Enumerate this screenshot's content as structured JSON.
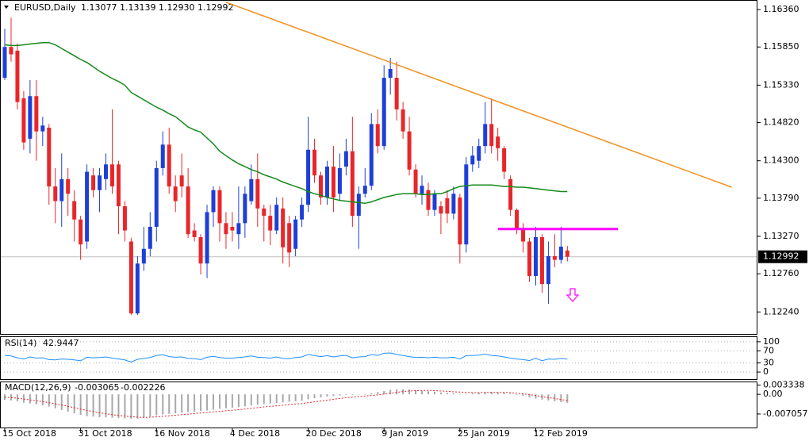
{
  "chart_data": [
    {
      "type": "candlestick",
      "title": "EURUSD,Daily",
      "subtitle": "1.13077 1.13139 1.12930 1.12992",
      "categories": [
        "15 Oct 2018",
        null,
        null,
        null,
        null,
        null,
        null,
        null,
        null,
        null,
        null,
        null,
        "31 Oct 2018",
        null,
        null,
        null,
        null,
        null,
        null,
        null,
        null,
        null,
        null,
        null,
        "16 Nov 2018",
        null,
        null,
        null,
        null,
        null,
        null,
        null,
        null,
        null,
        null,
        null,
        "4 Dec 2018",
        null,
        null,
        null,
        null,
        null,
        null,
        null,
        null,
        null,
        null,
        null,
        "20 Dec 2018",
        null,
        null,
        null,
        null,
        null,
        null,
        null,
        null,
        null,
        null,
        null,
        "9 Jan 2019",
        null,
        null,
        null,
        null,
        null,
        null,
        null,
        null,
        null,
        null,
        null,
        "25 Jan 2019",
        null,
        null,
        null,
        null,
        null,
        null,
        null,
        null,
        null,
        null,
        null,
        "12 Feb 2019",
        null,
        null,
        null,
        null,
        null
      ],
      "open": [
        1.1543,
        1.1585,
        1.158,
        1.1515,
        1.146,
        1.1518,
        1.147,
        1.1475,
        1.1395,
        1.1375,
        1.1405,
        1.1375,
        1.135,
        1.132,
        1.141,
        1.139,
        1.1405,
        1.1425,
        1.1425,
        1.1368,
        1.132,
        1.1222,
        1.129,
        1.131,
        1.134,
        1.142,
        1.1452,
        1.1395,
        1.141,
        1.1395,
        1.1335,
        1.1326,
        1.129,
        1.136,
        1.139,
        1.1345,
        1.134,
        1.133,
        1.1345,
        1.1375,
        1.1405,
        1.1365,
        1.1355,
        1.1335,
        1.1365,
        1.1345,
        1.131,
        1.135,
        1.137,
        1.1445,
        1.141,
        1.138,
        1.1422,
        1.1385,
        1.1422,
        1.1443,
        1.1355,
        1.1385,
        1.1396,
        1.148,
        1.145,
        1.1543,
        1.1543,
        1.15,
        1.147,
        1.1418,
        1.1385,
        1.139,
        1.1363,
        1.1368,
        1.1379,
        1.1358,
        1.138,
        1.1316,
        1.1425,
        1.143,
        1.145,
        1.148,
        1.1463,
        1.1447,
        1.1405,
        1.1363,
        1.1336,
        1.132,
        1.1273,
        1.1326,
        1.1262,
        1.13,
        1.1295,
        1.13077
      ],
      "high": [
        1.161,
        1.1625,
        1.159,
        1.1525,
        1.154,
        1.154,
        1.149,
        1.148,
        1.142,
        1.144,
        1.142,
        1.139,
        1.1355,
        1.1425,
        1.142,
        1.142,
        1.144,
        1.15,
        1.143,
        1.1375,
        1.1325,
        1.13,
        1.134,
        1.136,
        1.143,
        1.147,
        1.1475,
        1.141,
        1.144,
        1.142,
        1.1345,
        1.133,
        1.137,
        1.1395,
        1.1395,
        1.136,
        1.136,
        1.1395,
        1.1395,
        1.1425,
        1.144,
        1.137,
        1.137,
        1.138,
        1.138,
        1.1355,
        1.1355,
        1.138,
        1.149,
        1.146,
        1.1415,
        1.143,
        1.145,
        1.144,
        1.146,
        1.149,
        1.1395,
        1.142,
        1.1495,
        1.15,
        1.156,
        1.157,
        1.1565,
        1.151,
        1.149,
        1.1425,
        1.141,
        1.14,
        1.139,
        1.1375,
        1.139,
        1.1395,
        1.1385,
        1.1435,
        1.145,
        1.146,
        1.151,
        1.1515,
        1.1475,
        1.145,
        1.141,
        1.1365,
        1.1345,
        1.1325,
        1.134,
        1.133,
        1.132,
        1.133,
        1.134,
        1.13139
      ],
      "low": [
        1.154,
        1.1565,
        1.15,
        1.1445,
        1.144,
        1.143,
        1.145,
        1.137,
        1.1345,
        1.134,
        1.1355,
        1.132,
        1.1295,
        1.131,
        1.138,
        1.136,
        1.139,
        1.1385,
        1.133,
        1.132,
        1.122,
        1.122,
        1.128,
        1.13,
        1.132,
        1.141,
        1.1385,
        1.136,
        1.138,
        1.1325,
        1.132,
        1.1275,
        1.127,
        1.134,
        1.132,
        1.131,
        1.132,
        1.131,
        1.1325,
        1.137,
        1.134,
        1.132,
        1.1315,
        1.133,
        1.129,
        1.1285,
        1.13,
        1.134,
        1.136,
        1.14,
        1.137,
        1.137,
        1.136,
        1.1375,
        1.141,
        1.134,
        1.131,
        1.138,
        1.139,
        1.144,
        1.1445,
        1.152,
        1.1485,
        1.146,
        1.141,
        1.138,
        1.137,
        1.1355,
        1.1355,
        1.133,
        1.1345,
        1.135,
        1.129,
        1.1305,
        1.1415,
        1.142,
        1.144,
        1.144,
        1.143,
        1.1405,
        1.1355,
        1.133,
        1.1305,
        1.1265,
        1.126,
        1.125,
        1.1235,
        1.1285,
        1.129,
        1.1293
      ],
      "close": [
        1.1585,
        1.1575,
        1.151,
        1.1455,
        1.1518,
        1.147,
        1.1478,
        1.1395,
        1.1375,
        1.1405,
        1.1385,
        1.135,
        1.1316,
        1.1415,
        1.139,
        1.141,
        1.1425,
        1.1395,
        1.1368,
        1.1335,
        1.1222,
        1.129,
        1.131,
        1.134,
        1.142,
        1.1452,
        1.1395,
        1.1375,
        1.1395,
        1.133,
        1.1326,
        1.129,
        1.136,
        1.139,
        1.1345,
        1.133,
        1.1335,
        1.1345,
        1.1385,
        1.1405,
        1.1365,
        1.1355,
        1.1335,
        1.137,
        1.1312,
        1.1305,
        1.135,
        1.137,
        1.1445,
        1.141,
        1.138,
        1.1422,
        1.138,
        1.142,
        1.1443,
        1.1355,
        1.1385,
        1.1396,
        1.148,
        1.145,
        1.1543,
        1.1555,
        1.15,
        1.147,
        1.1418,
        1.1385,
        1.1396,
        1.1363,
        1.1385,
        1.1358,
        1.1358,
        1.1385,
        1.1316,
        1.1425,
        1.1437,
        1.145,
        1.148,
        1.145,
        1.1447,
        1.1415,
        1.1363,
        1.1336,
        1.132,
        1.1273,
        1.1326,
        1.1262,
        1.13,
        1.1295,
        1.1313,
        1.12992
      ],
      "up_color": "#1e3fd6",
      "down_color": "#e8262a",
      "overlays": [
        {
          "color": "#15891a",
          "values": [
            1.1588,
            1.1587,
            1.1587,
            1.1588,
            1.1589,
            1.159,
            1.1591,
            1.1591,
            1.1588,
            1.1583,
            1.1578,
            1.1573,
            1.1568,
            1.1564,
            1.1558,
            1.1552,
            1.1547,
            1.1542,
            1.1538,
            1.1533,
            1.1523,
            1.1518,
            1.1513,
            1.1508,
            1.1503,
            1.1499,
            1.1494,
            1.149,
            1.1483,
            1.1476,
            1.1472,
            1.1469,
            1.1461,
            1.1453,
            1.1443,
            1.1437,
            1.1431,
            1.1426,
            1.1422,
            1.1418,
            1.1415,
            1.1411,
            1.1408,
            1.1405,
            1.1401,
            1.1398,
            1.1395,
            1.1392,
            1.1388,
            1.1385,
            1.1383,
            1.138,
            1.1378,
            1.1376,
            1.1375,
            1.1374,
            1.1373,
            1.1372,
            1.1374,
            1.1377,
            1.138,
            1.1382,
            1.1384,
            1.1385,
            1.1385,
            1.1385,
            1.1384,
            1.1384,
            1.1385,
            1.1385,
            1.1388,
            1.1392,
            1.1395,
            1.1396,
            1.1397,
            1.1397,
            1.1397,
            1.1397,
            1.1396,
            1.1395,
            1.1395,
            1.1394,
            1.1394,
            1.1393,
            1.1392,
            1.1391,
            1.139,
            1.1389,
            1.1388,
            1.1388
          ]
        }
      ],
      "trendline": {
        "color": "#f0901e",
        "x": [
          35,
          115
        ],
        "values": [
          1.1646,
          1.1394
        ]
      },
      "level": {
        "color": "#ff00ff",
        "x": [
          78,
          97
        ],
        "values": [
          1.1337,
          1.1337
        ]
      },
      "last_price": 1.12992,
      "ylim": [
        1.1193,
        1.1649
      ],
      "yticks": [
        {
          "value": 1.1636,
          "label": "1.16360"
        },
        {
          "value": 1.1585,
          "label": "1.15850"
        },
        {
          "value": 1.1533,
          "label": "1.15330"
        },
        {
          "value": 1.1482,
          "label": "1.14820"
        },
        {
          "value": 1.143,
          "label": "1.14300"
        },
        {
          "value": 1.1379,
          "label": "1.13790"
        },
        {
          "value": 1.1327,
          "label": "1.13270"
        },
        {
          "value": 1.1276,
          "label": "1.12760"
        },
        {
          "value": 1.1224,
          "label": "1.12240"
        }
      ]
    },
    {
      "type": "line",
      "title": "RSI(14)",
      "title_value": 42.9447,
      "color": "#1e90ff",
      "values": [
        55,
        53,
        47,
        43,
        50,
        46,
        47,
        41,
        40,
        43,
        42,
        40,
        37,
        49,
        47,
        48,
        50,
        46,
        43,
        40,
        33,
        42,
        45,
        48,
        55,
        57,
        51,
        49,
        50,
        45,
        44,
        41,
        49,
        52,
        48,
        46,
        46,
        48,
        50,
        53,
        49,
        48,
        46,
        50,
        45,
        44,
        48,
        50,
        58,
        54,
        51,
        54,
        50,
        53,
        55,
        47,
        50,
        51,
        58,
        55,
        62,
        63,
        58,
        55,
        51,
        48,
        49,
        47,
        49,
        47,
        47,
        49,
        43,
        54,
        55,
        56,
        59,
        55,
        53,
        50,
        46,
        43,
        41,
        38,
        46,
        37,
        43,
        42,
        45,
        42.9447
      ],
      "ylim": [
        -26,
        118
      ],
      "yticks": [
        100,
        70,
        30,
        0
      ],
      "grid": true
    },
    {
      "type": "macd",
      "title": "MACD(12,26,9)",
      "title_values": [
        -0.003065,
        -0.002226
      ],
      "histogram": [
        -0.002,
        -0.0022,
        -0.0025,
        -0.003,
        -0.0033,
        -0.0036,
        -0.004,
        -0.0044,
        -0.005,
        -0.0056,
        -0.0062,
        -0.0068,
        -0.0074,
        -0.0078,
        -0.008,
        -0.0082,
        -0.0083,
        -0.0084,
        -0.0085,
        -0.0086,
        -0.0088,
        -0.0087,
        -0.0084,
        -0.008,
        -0.0076,
        -0.0072,
        -0.007,
        -0.0068,
        -0.0066,
        -0.0064,
        -0.0062,
        -0.006,
        -0.0058,
        -0.0055,
        -0.0052,
        -0.005,
        -0.0048,
        -0.0046,
        -0.0043,
        -0.004,
        -0.0037,
        -0.0035,
        -0.0033,
        -0.0031,
        -0.0029,
        -0.0027,
        -0.0025,
        -0.0023,
        -0.0018,
        -0.0014,
        -0.0011,
        -0.0008,
        -0.0006,
        -0.0004,
        -0.0002,
        -0.0002,
        -0.0001,
        0.0,
        0.0004,
        0.0008,
        0.0012,
        0.0016,
        0.0018,
        0.0018,
        0.0017,
        0.0015,
        0.0013,
        0.0011,
        0.0009,
        0.0007,
        0.0005,
        0.0003,
        0.0001,
        0.0002,
        0.0004,
        0.0006,
        0.0008,
        0.0009,
        0.0008,
        0.0006,
        0.0003,
        -0.0001,
        -0.0006,
        -0.0011,
        -0.0015,
        -0.0019,
        -0.0022,
        -0.0025,
        -0.0028,
        -0.003065
      ],
      "signal": [
        -0.001,
        -0.0012,
        -0.0014,
        -0.0017,
        -0.002,
        -0.0023,
        -0.0026,
        -0.003,
        -0.0034,
        -0.0038,
        -0.0043,
        -0.0048,
        -0.0053,
        -0.0058,
        -0.0062,
        -0.0066,
        -0.007,
        -0.0073,
        -0.0076,
        -0.0078,
        -0.008,
        -0.0082,
        -0.0083,
        -0.0082,
        -0.0081,
        -0.0079,
        -0.0077,
        -0.0075,
        -0.0073,
        -0.0071,
        -0.0069,
        -0.0067,
        -0.0065,
        -0.0063,
        -0.0061,
        -0.0059,
        -0.0057,
        -0.0055,
        -0.0053,
        -0.005,
        -0.0048,
        -0.0045,
        -0.0043,
        -0.0041,
        -0.0039,
        -0.0037,
        -0.0035,
        -0.0033,
        -0.003,
        -0.0027,
        -0.0024,
        -0.0021,
        -0.0018,
        -0.0015,
        -0.0012,
        -0.001,
        -0.0008,
        -0.0006,
        -0.0004,
        -0.0002,
        0.0001,
        0.0004,
        0.0007,
        0.001,
        0.0012,
        0.0013,
        0.0014,
        0.0014,
        0.0013,
        0.0012,
        0.0011,
        0.0009,
        0.0008,
        0.0007,
        0.0006,
        0.0006,
        0.0007,
        0.0007,
        0.0007,
        0.0007,
        0.0006,
        0.0004,
        0.0002,
        -0.0001,
        -0.0004,
        -0.0008,
        -0.0012,
        -0.0015,
        -0.0019,
        -0.002226
      ],
      "hist_color": "#a8a8a8",
      "signal_color": "#e8262a",
      "ylim": [
        -0.0122,
        0.0046
      ],
      "yticks": [
        0.003338,
        {
          "value": 0,
          "label": "0.00"
        },
        -0.007057
      ]
    }
  ]
}
